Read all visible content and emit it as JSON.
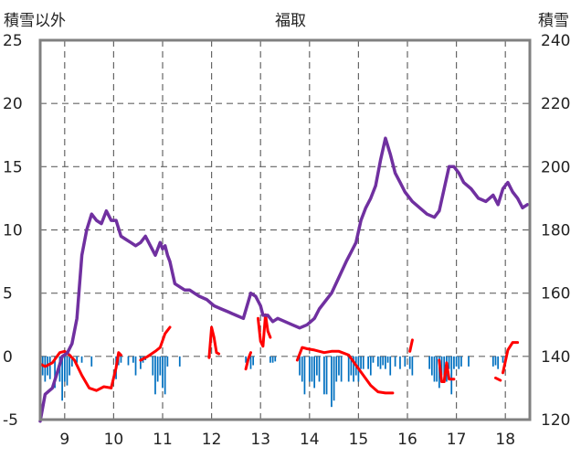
{
  "chart_data": {
    "type": "line",
    "title": "福取",
    "ylabel_left": "積雪以外",
    "ylabel_right": "積雪",
    "xlim": [
      8.5,
      18.5
    ],
    "ylim_left": [
      -5,
      25
    ],
    "ylim_right": [
      120,
      240
    ],
    "x_ticks": [
      "9",
      "10",
      "11",
      "12",
      "13",
      "14",
      "15",
      "16",
      "17",
      "18"
    ],
    "y_ticks_left": [
      "25",
      "20",
      "15",
      "10",
      "5",
      "0",
      "-5"
    ],
    "y_ticks_right": [
      "240",
      "220",
      "200",
      "180",
      "160",
      "140",
      "120"
    ],
    "grid": true,
    "colors": {
      "snow_depth": "#7030a0",
      "temperature": "#ff0000",
      "precipitation": "#0070c0",
      "grid": "#666666",
      "frame": "#808080"
    },
    "series": [
      {
        "key": "snow_depth",
        "axis": "right",
        "kind": "line",
        "x": [
          8.5,
          8.6,
          8.75,
          8.85,
          8.95,
          9.05,
          9.15,
          9.25,
          9.35,
          9.45,
          9.55,
          9.65,
          9.75,
          9.85,
          9.95,
          10.05,
          10.15,
          10.25,
          10.35,
          10.45,
          10.55,
          10.65,
          10.75,
          10.85,
          10.95,
          11.0,
          11.05,
          11.1,
          11.15,
          11.25,
          11.35,
          11.45,
          11.55,
          11.65,
          11.75,
          11.9,
          12.05,
          12.2,
          12.35,
          12.5,
          12.65,
          12.8,
          12.9,
          13.0,
          13.05,
          13.15,
          13.25,
          13.35,
          13.5,
          13.65,
          13.8,
          13.95,
          14.1,
          14.2,
          14.3,
          14.45,
          14.6,
          14.75,
          14.85,
          14.95,
          15.05,
          15.15,
          15.25,
          15.35,
          15.45,
          15.55,
          15.65,
          15.75,
          15.85,
          15.95,
          16.1,
          16.25,
          16.4,
          16.55,
          16.65,
          16.75,
          16.85,
          16.95,
          17.05,
          17.15,
          17.3,
          17.45,
          17.6,
          17.75,
          17.85,
          17.95,
          18.05,
          18.15,
          18.25,
          18.35,
          18.45
        ],
        "values": [
          119.5,
          128,
          130,
          135,
          140,
          141,
          144,
          152,
          172,
          180,
          185,
          183,
          182,
          186,
          183,
          183,
          178,
          177,
          176,
          175,
          176,
          178,
          175,
          172,
          176,
          174,
          175,
          172,
          170,
          163,
          162,
          161,
          161,
          160,
          159,
          158,
          156,
          155,
          154,
          153,
          152,
          160,
          159,
          156,
          153,
          153,
          151,
          152,
          151,
          150,
          149,
          150,
          152,
          155,
          157,
          160,
          165,
          170,
          173,
          176,
          183,
          187,
          190,
          194,
          202,
          209,
          204,
          198,
          195,
          192,
          189,
          187,
          185,
          184,
          186,
          193,
          200,
          200,
          198,
          195,
          193,
          190,
          189,
          191,
          188,
          193,
          195,
          192,
          190,
          187,
          188
        ]
      },
      {
        "key": "temperature",
        "axis": "left",
        "kind": "line",
        "segments": [
          {
            "x": [
              8.5,
              8.6,
              8.75,
              8.9,
              9.0,
              9.1,
              9.2,
              9.35,
              9.5,
              9.65,
              9.8,
              9.95
            ],
            "values": [
              -0.6,
              -0.8,
              -0.5,
              0.3,
              0.4,
              0.1,
              -0.3,
              -1.5,
              -2.5,
              -2.7,
              -2.4,
              -2.5
            ]
          },
          {
            "x": [
              9.95,
              10.05,
              10.1,
              10.15
            ],
            "values": [
              -2.5,
              -0.9,
              0.3,
              0.1
            ]
          },
          {
            "x": [
              10.55,
              10.7,
              10.85,
              10.95,
              11.05,
              11.15
            ],
            "values": [
              -0.3,
              0.0,
              0.4,
              0.7,
              1.8,
              2.3
            ]
          },
          {
            "x": [
              11.95,
              12.0,
              12.05,
              12.1,
              12.15
            ],
            "values": [
              -0.1,
              2.3,
              1.5,
              0.3,
              0.2
            ]
          },
          {
            "x": [
              12.7,
              12.75,
              12.8
            ],
            "values": [
              -1.0,
              -0.2,
              0.3
            ]
          },
          {
            "x": [
              12.95,
              13.0,
              13.05,
              13.1,
              13.15,
              13.2
            ],
            "values": [
              3.0,
              1.2,
              0.8,
              3.3,
              2.0,
              1.5
            ]
          },
          {
            "x": [
              13.75,
              13.85,
              13.95,
              14.1,
              14.3,
              14.45,
              14.6,
              14.8,
              14.95,
              15.1,
              15.25,
              15.4,
              15.55,
              15.7
            ],
            "values": [
              -0.3,
              0.7,
              0.6,
              0.5,
              0.3,
              0.4,
              0.4,
              0.1,
              -0.7,
              -1.5,
              -2.3,
              -2.8,
              -2.9,
              -2.9
            ]
          },
          {
            "x": [
              16.05,
              16.1
            ],
            "values": [
              0.4,
              1.3
            ]
          },
          {
            "x": [
              16.65,
              16.7,
              16.75,
              16.8,
              16.85,
              16.95
            ],
            "values": [
              -0.3,
              -2.0,
              -2.0,
              -0.5,
              -1.8,
              -1.8
            ]
          },
          {
            "x": [
              17.8,
              17.9
            ],
            "values": [
              -1.7,
              -1.9
            ]
          },
          {
            "x": [
              17.95,
              18.05,
              18.15,
              18.25
            ],
            "values": [
              -1.3,
              0.5,
              1.1,
              1.1
            ]
          }
        ]
      },
      {
        "key": "precipitation",
        "axis": "left",
        "kind": "bar",
        "x": [
          8.55,
          8.6,
          8.65,
          8.7,
          8.8,
          8.9,
          8.95,
          9.0,
          9.05,
          9.1,
          9.15,
          9.25,
          9.35,
          9.55,
          10.05,
          10.1,
          10.15,
          10.3,
          10.4,
          10.45,
          10.55,
          10.6,
          10.65,
          10.8,
          10.85,
          10.9,
          10.95,
          11.0,
          11.05,
          11.1,
          11.35,
          12.7,
          12.8,
          12.85,
          13.2,
          13.25,
          13.3,
          13.8,
          13.85,
          13.9,
          14.0,
          14.05,
          14.1,
          14.15,
          14.2,
          14.3,
          14.35,
          14.45,
          14.5,
          14.55,
          14.6,
          14.65,
          14.8,
          14.85,
          14.9,
          14.95,
          15.0,
          15.05,
          15.1,
          15.2,
          15.25,
          15.3,
          15.4,
          15.45,
          15.5,
          15.55,
          15.6,
          15.65,
          15.75,
          15.85,
          15.95,
          16.05,
          16.1,
          16.45,
          16.5,
          16.55,
          16.6,
          16.65,
          16.7,
          16.75,
          16.8,
          16.85,
          16.9,
          16.95,
          17.0,
          17.05,
          17.1,
          17.25,
          17.75,
          17.8,
          17.85,
          17.95,
          18.0
        ],
        "values": [
          -1.5,
          -2.0,
          -1.5,
          -1.8,
          -2.5,
          -2.0,
          -3.5,
          -2.0,
          -2.3,
          -1.5,
          -0.8,
          -0.5,
          -0.5,
          -0.8,
          -1.8,
          -0.7,
          -0.5,
          -0.7,
          -0.5,
          -1.5,
          -1.0,
          -0.5,
          -0.3,
          -1.5,
          -3.0,
          -2.0,
          -1.5,
          -2.5,
          -3.0,
          -0.8,
          -0.8,
          -0.5,
          -1.0,
          -0.7,
          -0.5,
          -0.5,
          -0.4,
          -1.5,
          -2.0,
          -3.0,
          -2.0,
          -2.0,
          -2.5,
          -1.5,
          -2.0,
          -3.0,
          -3.0,
          -4.0,
          -3.5,
          -2.0,
          -1.5,
          -2.0,
          -2.0,
          -1.5,
          -2.0,
          -1.5,
          -2.0,
          -1.0,
          -1.0,
          -1.0,
          -1.5,
          -0.5,
          -0.8,
          -1.0,
          -0.7,
          -1.0,
          -0.5,
          -1.5,
          -0.8,
          -1.0,
          -0.8,
          -1.0,
          -1.5,
          -1.0,
          -1.5,
          -2.0,
          -2.0,
          -2.5,
          -1.5,
          -2.0,
          -2.0,
          -1.0,
          -3.0,
          -1.0,
          -0.8,
          -1.0,
          -0.8,
          -0.8,
          -0.8,
          -0.7,
          -1.0,
          -0.5,
          -0.8
        ]
      }
    ]
  }
}
